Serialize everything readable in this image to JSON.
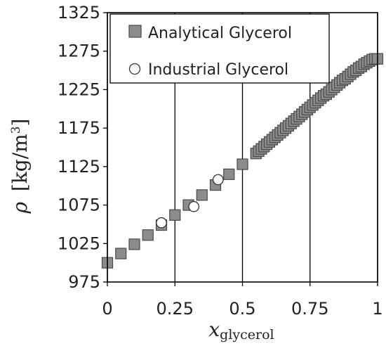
{
  "chart_data": {
    "type": "scatter",
    "xlabel": {
      "main": "x",
      "sub": "glycerol"
    },
    "ylabel": {
      "symbol": "ρ",
      "unit": "[kg/m",
      "sup": "3",
      "close": "]"
    },
    "xlim": [
      0,
      1
    ],
    "ylim": [
      975,
      1325
    ],
    "xticks": [
      0,
      0.25,
      0.5,
      0.75,
      1
    ],
    "xtick_labels": [
      "0",
      "0.25",
      "0.5",
      "0.75",
      "1"
    ],
    "yticks": [
      975,
      1025,
      1075,
      1125,
      1175,
      1225,
      1275,
      1325
    ],
    "ytick_labels": [
      "975",
      "1025",
      "1075",
      "1125",
      "1175",
      "1225",
      "1275",
      "1325"
    ],
    "grid": "vertical",
    "legend_position": "top-left",
    "series": [
      {
        "name": "Analytical Glycerol",
        "marker": "square",
        "color": "#8c8c8c",
        "x": [
          0,
          0.05,
          0.1,
          0.15,
          0.2,
          0.25,
          0.3,
          0.35,
          0.4,
          0.45,
          0.5,
          0.55,
          0.56,
          0.57,
          0.58,
          0.59,
          0.6,
          0.61,
          0.62,
          0.63,
          0.64,
          0.65,
          0.66,
          0.67,
          0.68,
          0.69,
          0.7,
          0.71,
          0.72,
          0.73,
          0.74,
          0.75,
          0.76,
          0.77,
          0.78,
          0.79,
          0.8,
          0.81,
          0.82,
          0.83,
          0.84,
          0.85,
          0.86,
          0.87,
          0.88,
          0.89,
          0.9,
          0.91,
          0.92,
          0.93,
          0.94,
          0.95,
          0.96,
          0.97,
          0.98,
          0.99,
          1.0
        ],
        "y": [
          1000,
          1012,
          1024,
          1036,
          1049,
          1062,
          1075,
          1088,
          1101,
          1115,
          1128,
          1142,
          1145,
          1148,
          1151,
          1154,
          1157,
          1160,
          1163,
          1166,
          1169,
          1172,
          1175,
          1178,
          1181,
          1184,
          1187,
          1190,
          1193,
          1196,
          1199,
          1202,
          1205,
          1208,
          1211,
          1214,
          1217,
          1219,
          1222,
          1225,
          1228,
          1231,
          1234,
          1237,
          1239,
          1242,
          1245,
          1248,
          1250,
          1253,
          1255,
          1258,
          1260,
          1262,
          1264,
          1265,
          1265
        ]
      },
      {
        "name": "Industrial Glycerol",
        "marker": "circle",
        "color": "#ffffff",
        "x": [
          0.2,
          0.32,
          0.41
        ],
        "y": [
          1052,
          1073,
          1108
        ]
      }
    ]
  }
}
